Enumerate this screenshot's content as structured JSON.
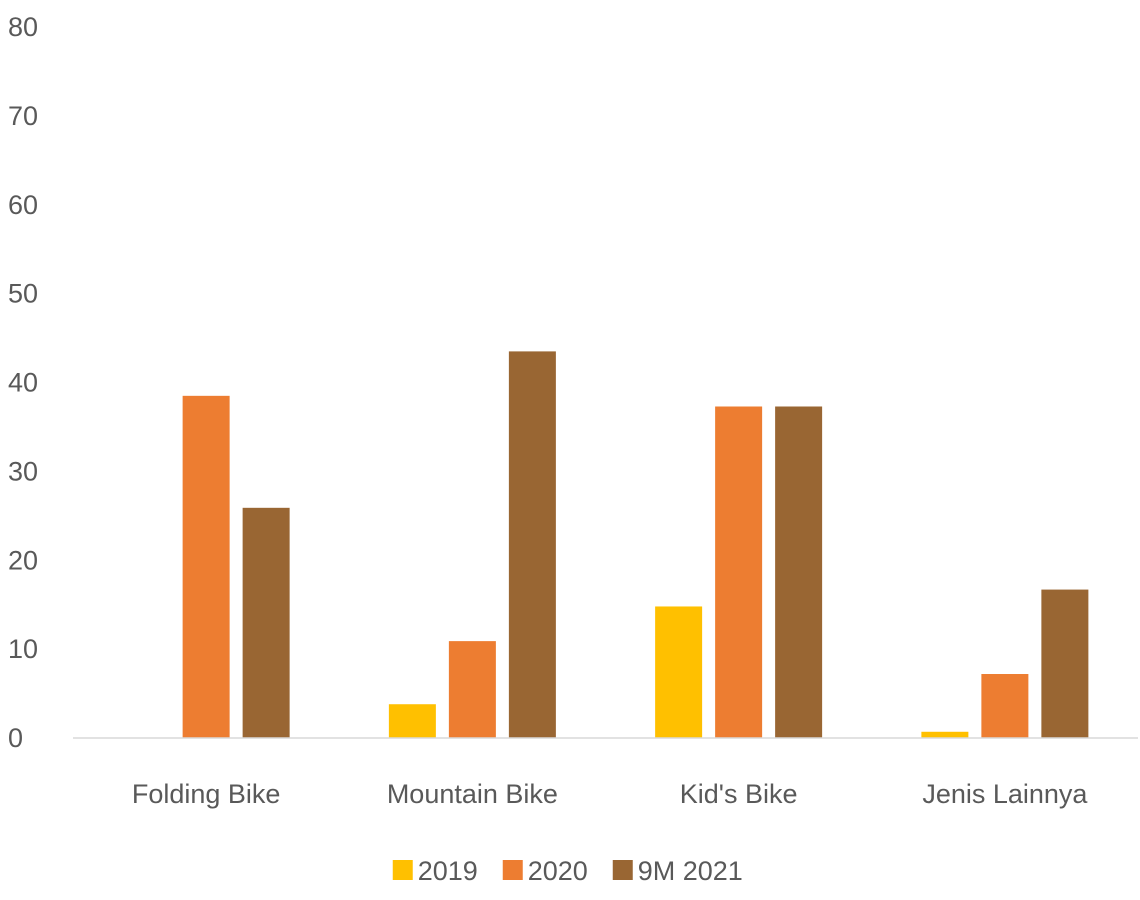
{
  "chart_data": {
    "type": "bar",
    "categories": [
      "Folding Bike",
      "Mountain Bike",
      "Kid's Bike",
      "Jenis Lainnya"
    ],
    "series": [
      {
        "name": "2019",
        "values": [
          0,
          3.8,
          14.8,
          0.7
        ],
        "color": "#FFC000"
      },
      {
        "name": "2020",
        "values": [
          38.5,
          10.9,
          37.3,
          7.2
        ],
        "color": "#ED7D31"
      },
      {
        "name": "9M 2021",
        "values": [
          25.9,
          43.5,
          37.3,
          16.7
        ],
        "color": "#996633"
      }
    ],
    "ylim": [
      0,
      80
    ],
    "yticks": [
      "0",
      "10",
      "20",
      "30",
      "40",
      "50",
      "60",
      "70",
      "80"
    ],
    "grid": false,
    "legend_position": "bottom"
  }
}
